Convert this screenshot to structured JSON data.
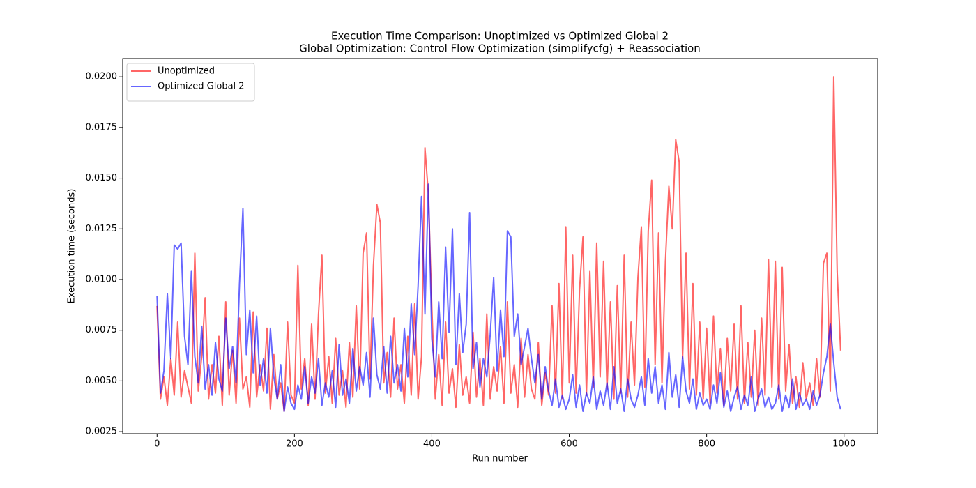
{
  "chart_data": {
    "type": "line",
    "title": "Execution Time Comparison: Unoptimized vs Optimized Global 2",
    "subtitle": "Global Optimization: Control Flow Optimization (simplifycfg) + Reassociation",
    "x_label": "Run number",
    "y_label": "Execution time (seconds)",
    "legend": "upper left",
    "alpha": 0.6,
    "xlim": [
      -50,
      1049
    ],
    "ylim": [
      0.0024,
      0.0209
    ],
    "xticks": [
      0,
      200,
      400,
      600,
      800,
      1000
    ],
    "yticks": [
      0.0025,
      {
        "value": 0.005,
        "label": "0.0050"
      },
      0.0075,
      {
        "value": 0.01,
        "label": "0.0100"
      },
      0.0125,
      {
        "value": 0.015,
        "label": "0.0150"
      },
      0.0175,
      {
        "value": 0.02,
        "label": "0.0200"
      }
    ],
    "x": [
      0,
      5,
      10,
      15,
      20,
      25,
      30,
      35,
      40,
      45,
      50,
      55,
      60,
      65,
      70,
      75,
      80,
      85,
      90,
      95,
      100,
      105,
      110,
      115,
      120,
      125,
      130,
      135,
      140,
      145,
      150,
      155,
      160,
      165,
      170,
      175,
      180,
      185,
      190,
      195,
      200,
      205,
      210,
      215,
      220,
      225,
      230,
      235,
      240,
      245,
      250,
      255,
      260,
      265,
      270,
      275,
      280,
      285,
      290,
      295,
      300,
      305,
      310,
      315,
      320,
      325,
      330,
      335,
      340,
      345,
      350,
      355,
      360,
      365,
      370,
      375,
      380,
      385,
      390,
      395,
      400,
      405,
      410,
      415,
      420,
      425,
      430,
      435,
      440,
      445,
      450,
      455,
      460,
      465,
      470,
      475,
      480,
      485,
      490,
      495,
      500,
      505,
      510,
      515,
      520,
      525,
      530,
      535,
      540,
      545,
      550,
      555,
      560,
      565,
      570,
      575,
      580,
      585,
      590,
      595,
      600,
      605,
      610,
      615,
      620,
      625,
      630,
      635,
      640,
      645,
      650,
      655,
      660,
      665,
      670,
      675,
      680,
      685,
      690,
      695,
      700,
      705,
      710,
      715,
      720,
      725,
      730,
      735,
      740,
      745,
      750,
      755,
      760,
      765,
      770,
      775,
      780,
      785,
      790,
      795,
      800,
      805,
      810,
      815,
      820,
      825,
      830,
      835,
      840,
      845,
      850,
      855,
      860,
      865,
      870,
      875,
      880,
      885,
      890,
      895,
      900,
      905,
      910,
      915,
      920,
      925,
      930,
      935,
      940,
      945,
      950,
      955,
      960,
      965,
      970,
      975,
      980,
      985,
      990,
      995
    ],
    "series": [
      {
        "name": "Unoptimized",
        "color": "#ff0000",
        "values": [
          0.0087,
          0.0041,
          0.0052,
          0.0038,
          0.0061,
          0.0043,
          0.0079,
          0.0042,
          0.0055,
          0.0047,
          0.0039,
          0.0113,
          0.0045,
          0.0062,
          0.0091,
          0.0041,
          0.0058,
          0.0044,
          0.0072,
          0.0038,
          0.0089,
          0.0043,
          0.0065,
          0.0039,
          0.0081,
          0.0046,
          0.0052,
          0.0037,
          0.0084,
          0.0042,
          0.0058,
          0.0045,
          0.0076,
          0.0036,
          0.0063,
          0.0041,
          0.0049,
          0.0035,
          0.0079,
          0.0043,
          0.0039,
          0.0107,
          0.0046,
          0.0061,
          0.0038,
          0.0078,
          0.0041,
          0.0083,
          0.0112,
          0.0044,
          0.0062,
          0.0039,
          0.0071,
          0.0043,
          0.0055,
          0.0037,
          0.0069,
          0.0042,
          0.0087,
          0.0046,
          0.0113,
          0.0123,
          0.0051,
          0.0107,
          0.0137,
          0.0128,
          0.0049,
          0.0064,
          0.0042,
          0.0081,
          0.0046,
          0.0058,
          0.0039,
          0.0072,
          0.0043,
          0.0088,
          0.0041,
          0.0062,
          0.0165,
          0.0142,
          0.0086,
          0.0041,
          0.0063,
          0.0038,
          0.0079,
          0.0044,
          0.0056,
          0.0037,
          0.0068,
          0.0043,
          0.0052,
          0.0039,
          0.0074,
          0.0042,
          0.0061,
          0.0038,
          0.0083,
          0.0041,
          0.0057,
          0.0045,
          0.0067,
          0.0039,
          0.0089,
          0.0044,
          0.0058,
          0.0037,
          0.0071,
          0.0042,
          0.0063,
          0.0046,
          0.0041,
          0.0069,
          0.0038,
          0.0054,
          0.0043,
          0.0087,
          0.0044,
          0.0098,
          0.0041,
          0.0126,
          0.0049,
          0.0112,
          0.0044,
          0.0095,
          0.0121,
          0.0043,
          0.0104,
          0.0047,
          0.0118,
          0.0052,
          0.0109,
          0.0046,
          0.0089,
          0.0041,
          0.0097,
          0.0044,
          0.0112,
          0.0042,
          0.0079,
          0.0048,
          0.0101,
          0.0126,
          0.0047,
          0.0124,
          0.0149,
          0.0058,
          0.0123,
          0.0049,
          0.0109,
          0.0146,
          0.0125,
          0.0169,
          0.0158,
          0.0061,
          0.0113,
          0.0046,
          0.0098,
          0.0043,
          0.0079,
          0.0041,
          0.0076,
          0.0039,
          0.0082,
          0.0044,
          0.0066,
          0.0038,
          0.0071,
          0.0045,
          0.0078,
          0.0041,
          0.0087,
          0.0039,
          0.0069,
          0.0042,
          0.0075,
          0.0038,
          0.0081,
          0.0043,
          0.011,
          0.0047,
          0.0109,
          0.0041,
          0.0106,
          0.0045,
          0.0068,
          0.0039,
          0.0052,
          0.0037,
          0.0059,
          0.0041,
          0.0049,
          0.0038,
          0.0061,
          0.0042,
          0.0108,
          0.0113,
          0.0045,
          0.02,
          0.0104,
          0.0065
        ]
      },
      {
        "name": "Optimized Global 2",
        "color": "#0000ff",
        "values": [
          0.0092,
          0.0044,
          0.0055,
          0.0093,
          0.0061,
          0.0117,
          0.0115,
          0.0118,
          0.0072,
          0.0058,
          0.0104,
          0.0062,
          0.0049,
          0.0077,
          0.0046,
          0.0058,
          0.0043,
          0.0069,
          0.0051,
          0.0045,
          0.0081,
          0.0056,
          0.0067,
          0.0049,
          0.0098,
          0.0135,
          0.0063,
          0.0085,
          0.0054,
          0.0082,
          0.0048,
          0.0061,
          0.0044,
          0.0076,
          0.0052,
          0.0041,
          0.0058,
          0.0035,
          0.0047,
          0.0039,
          0.0036,
          0.0048,
          0.0041,
          0.0057,
          0.0039,
          0.0052,
          0.0044,
          0.0061,
          0.0038,
          0.0049,
          0.0042,
          0.0055,
          0.0037,
          0.0068,
          0.0043,
          0.0051,
          0.0039,
          0.0066,
          0.0045,
          0.0057,
          0.0048,
          0.0064,
          0.0042,
          0.0081,
          0.0053,
          0.0046,
          0.0067,
          0.0044,
          0.0072,
          0.0049,
          0.0058,
          0.0045,
          0.0076,
          0.0052,
          0.0088,
          0.0063,
          0.0097,
          0.0141,
          0.0083,
          0.0147,
          0.0071,
          0.0052,
          0.0089,
          0.0061,
          0.0116,
          0.0074,
          0.0125,
          0.0058,
          0.0093,
          0.0064,
          0.0078,
          0.0133,
          0.0056,
          0.0069,
          0.0047,
          0.0061,
          0.0052,
          0.0073,
          0.0101,
          0.0055,
          0.0085,
          0.0062,
          0.0124,
          0.0121,
          0.0072,
          0.0083,
          0.0058,
          0.0067,
          0.0076,
          0.0061,
          0.0049,
          0.0063,
          0.0041,
          0.0057,
          0.0045,
          0.0038,
          0.0051,
          0.0037,
          0.0043,
          0.0036,
          0.0041,
          0.0053,
          0.0037,
          0.0048,
          0.0035,
          0.0044,
          0.0039,
          0.0052,
          0.0036,
          0.0045,
          0.0038,
          0.0049,
          0.0036,
          0.0057,
          0.0039,
          0.0046,
          0.0035,
          0.0051,
          0.0041,
          0.0037,
          0.0043,
          0.0052,
          0.0038,
          0.0061,
          0.0044,
          0.0057,
          0.0039,
          0.0048,
          0.0036,
          0.0064,
          0.0042,
          0.0053,
          0.0037,
          0.0062,
          0.0045,
          0.0039,
          0.0051,
          0.0036,
          0.0044,
          0.0038,
          0.0041,
          0.0036,
          0.0048,
          0.0039,
          0.0054,
          0.0037,
          0.0045,
          0.0035,
          0.0042,
          0.0047,
          0.0036,
          0.0043,
          0.0038,
          0.0052,
          0.0035,
          0.0041,
          0.0046,
          0.0037,
          0.0042,
          0.0036,
          0.0039,
          0.0048,
          0.0035,
          0.0043,
          0.0037,
          0.0051,
          0.0036,
          0.0044,
          0.0038,
          0.0041,
          0.0036,
          0.0045,
          0.0038,
          0.0043,
          0.0054,
          0.0062,
          0.0078,
          0.0059,
          0.0042,
          0.0036
        ]
      }
    ]
  }
}
